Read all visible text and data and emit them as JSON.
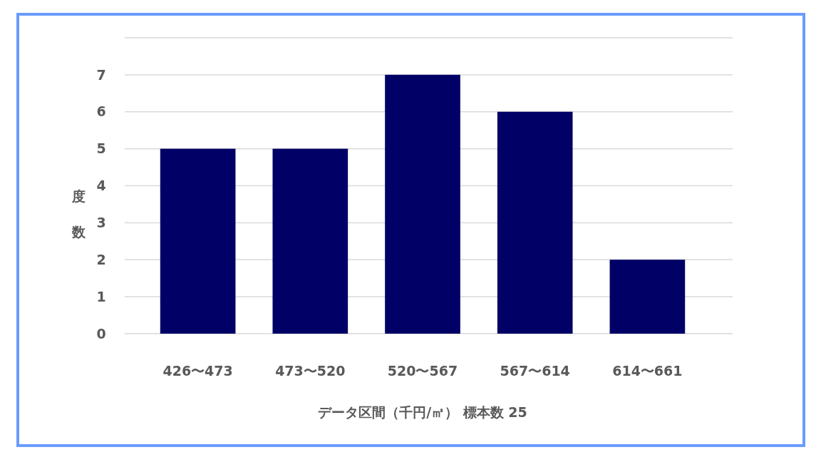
{
  "chart_data": {
    "type": "bar",
    "categories": [
      "426〜473",
      "473〜520",
      "520〜567",
      "567〜614",
      "614〜661"
    ],
    "values": [
      5,
      5,
      7,
      6,
      2
    ],
    "color": "#000066",
    "ylabel": "度数",
    "xlabel": "データ区間（千円/㎡） 標本数 25",
    "ylim": [
      0,
      8
    ],
    "yticks": [
      0,
      1,
      2,
      3,
      4,
      5,
      6,
      7,
      {
        "value": 8,
        "label": null
      }
    ],
    "grid": "y"
  }
}
